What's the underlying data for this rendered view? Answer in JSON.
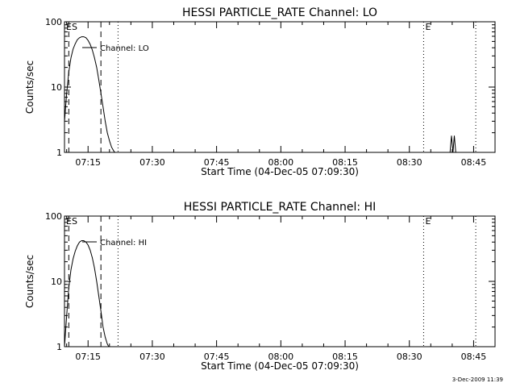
{
  "chart_data": [
    {
      "type": "line",
      "title": "HESSI PARTICLE_RATE Channel: LO",
      "xlabel": "Start Time (04-Dec-05 07:09:30)",
      "ylabel": "Counts/sec",
      "xscale": "time",
      "yscale": "log",
      "xlim": [
        "07:09:30",
        "08:50:00"
      ],
      "ylim": [
        1,
        100
      ],
      "xticks": [
        "07:15",
        "07:30",
        "07:45",
        "08:00",
        "08:15",
        "08:30",
        "08:45"
      ],
      "yticks": [
        "1",
        "10",
        "100"
      ],
      "grid": false,
      "legend": {
        "placement": "top-left",
        "entries": [
          "Channel: LO"
        ]
      },
      "series": [
        {
          "name": "Channel: LO",
          "x": [
            "07:09:30",
            "07:10:00",
            "07:10:30",
            "07:11:00",
            "07:11:30",
            "07:12:00",
            "07:12:30",
            "07:13:00",
            "07:13:30",
            "07:14:00",
            "07:14:30",
            "07:15:00",
            "07:15:30",
            "07:16:00",
            "07:16:30",
            "07:17:00",
            "07:17:30",
            "07:18:00",
            "07:18:30",
            "07:19:00",
            "07:19:30",
            "07:20:00",
            "07:20:30",
            "07:21:00",
            "07:21:15"
          ],
          "values": [
            3,
            8,
            17,
            28,
            38,
            46,
            53,
            57,
            59,
            59,
            57,
            52,
            45,
            37,
            28,
            20,
            13,
            8,
            5,
            3,
            2,
            1.5,
            1.2,
            1.05,
            1
          ],
          "segments": [
            {
              "x": [
                "08:39:30",
                "08:39:50",
                "08:40:10",
                "08:40:30",
                "08:40:50"
              ],
              "values": [
                1,
                1.8,
                1,
                1.8,
                1
              ]
            }
          ]
        }
      ],
      "markers": {
        "dashed": [
          "07:10:30",
          "07:18:00"
        ],
        "dotted": [
          "07:22:00",
          "08:33:20",
          "08:45:30"
        ],
        "labels": [
          {
            "text": "ES",
            "at": "07:09:30"
          },
          {
            "text": "E",
            "at": "08:33:20"
          }
        ]
      }
    },
    {
      "type": "line",
      "title": "HESSI PARTICLE_RATE Channel: HI",
      "xlabel": "Start Time (04-Dec-05 07:09:30)",
      "ylabel": "Counts/sec",
      "xscale": "time",
      "yscale": "log",
      "xlim": [
        "07:09:30",
        "08:50:00"
      ],
      "ylim": [
        1,
        100
      ],
      "xticks": [
        "07:15",
        "07:30",
        "07:45",
        "08:00",
        "08:15",
        "08:30",
        "08:45"
      ],
      "yticks": [
        "1",
        "10",
        "100"
      ],
      "grid": false,
      "legend": {
        "placement": "top-left",
        "entries": [
          "Channel: HI"
        ]
      },
      "series": [
        {
          "name": "Channel: HI",
          "x": [
            "07:09:30",
            "07:10:00",
            "07:10:30",
            "07:11:00",
            "07:11:30",
            "07:12:00",
            "07:12:30",
            "07:13:00",
            "07:13:30",
            "07:14:00",
            "07:14:30",
            "07:15:00",
            "07:15:30",
            "07:16:00",
            "07:16:30",
            "07:17:00",
            "07:17:30",
            "07:18:00",
            "07:18:30",
            "07:19:00",
            "07:19:30",
            "07:19:50"
          ],
          "values": [
            1,
            3,
            8,
            15,
            22,
            29,
            35,
            40,
            42,
            42,
            40,
            36,
            30,
            23,
            16,
            10,
            6,
            3.5,
            2,
            1.4,
            1.1,
            1
          ]
        }
      ],
      "markers": {
        "dashed": [
          "07:10:30",
          "07:18:00"
        ],
        "dotted": [
          "07:22:00",
          "08:33:20",
          "08:45:30"
        ],
        "labels": [
          {
            "text": "ES",
            "at": "07:09:30"
          },
          {
            "text": "E",
            "at": "08:33:20"
          }
        ]
      }
    }
  ],
  "footer": {
    "stamp": "3-Dec-2009 11:39"
  }
}
